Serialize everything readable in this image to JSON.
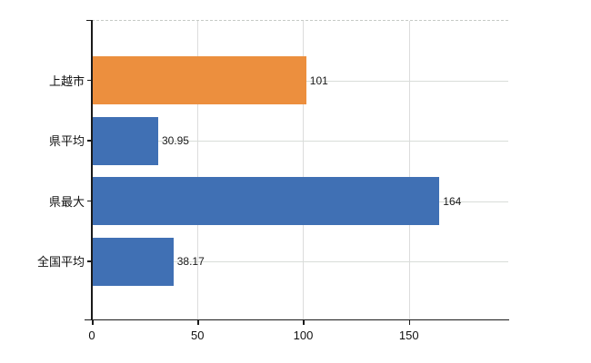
{
  "chart_data": {
    "type": "bar",
    "orientation": "horizontal",
    "title": "",
    "categories": [
      "上越市",
      "県平均",
      "県最大",
      "全国平均"
    ],
    "values": [
      101,
      30.95,
      164,
      38.17
    ],
    "value_labels": [
      "101",
      "30.95",
      "164",
      "38.17"
    ],
    "series_colors": [
      "#ec8f3e",
      "#4070b4",
      "#4070b4",
      "#4070b4"
    ],
    "x_tick_labels": [
      "0",
      "50",
      "100",
      "150"
    ],
    "x_tick_values": [
      0,
      50,
      100,
      150
    ],
    "xlim": [
      0,
      197
    ],
    "grid": "on",
    "legend": "none",
    "colors": {
      "highlight_bar": "#ec8f3e",
      "default_bar": "#4070b4",
      "axis": "#1a1a1a",
      "grid_vertical": "#dcdcdc",
      "grid_horizontal": "#d9ddd9",
      "top_border": "#c6cac6",
      "text": "#111111",
      "background": "#ffffff"
    }
  }
}
